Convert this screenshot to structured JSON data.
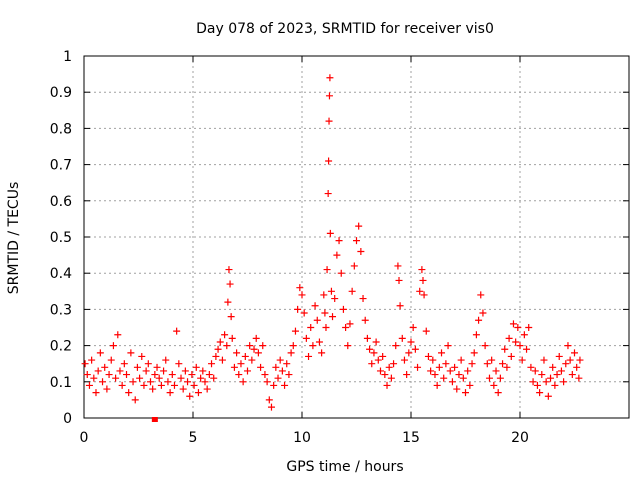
{
  "chart_data": {
    "type": "scatter",
    "title": "Day 078 of 2023, SRMTID for receiver vis0",
    "xlabel": "GPS time / hours",
    "ylabel": "SRMTID / TECUs",
    "xlim": [
      0,
      25
    ],
    "ylim": [
      0,
      1
    ],
    "xticks": [
      0,
      5,
      10,
      15,
      20
    ],
    "yticks": [
      0,
      0.1,
      0.2,
      0.3,
      0.4,
      0.5,
      0.6,
      0.7,
      0.8,
      0.9,
      1
    ],
    "xtick_labels": [
      "0",
      "5",
      "10",
      "15",
      "20"
    ],
    "ytick_labels": [
      "0",
      "0.1",
      "0.2",
      "0.3",
      "0.4",
      "0.5",
      "0.6",
      "0.7",
      "0.8",
      "0.9",
      "1"
    ],
    "grid": true,
    "marker": "+",
    "color": "#ff0000",
    "series": [
      {
        "name": "SRMTID",
        "points": [
          [
            0.05,
            0.15
          ],
          [
            0.15,
            0.12
          ],
          [
            0.25,
            0.09
          ],
          [
            0.35,
            0.16
          ],
          [
            0.45,
            0.11
          ],
          [
            0.55,
            0.07
          ],
          [
            0.65,
            0.13
          ],
          [
            0.75,
            0.18
          ],
          [
            0.85,
            0.1
          ],
          [
            0.95,
            0.14
          ],
          [
            1.05,
            0.08
          ],
          [
            1.15,
            0.12
          ],
          [
            1.25,
            0.16
          ],
          [
            1.35,
            0.2
          ],
          [
            1.45,
            0.11
          ],
          [
            1.55,
            0.23
          ],
          [
            1.65,
            0.13
          ],
          [
            1.75,
            0.09
          ],
          [
            1.85,
            0.15
          ],
          [
            1.95,
            0.12
          ],
          [
            2.05,
            0.07
          ],
          [
            2.15,
            0.18
          ],
          [
            2.25,
            0.1
          ],
          [
            2.35,
            0.05
          ],
          [
            2.45,
            0.14
          ],
          [
            2.55,
            0.11
          ],
          [
            2.65,
            0.17
          ],
          [
            2.75,
            0.09
          ],
          [
            2.85,
            0.13
          ],
          [
            2.95,
            0.15
          ],
          [
            3.05,
            0.1
          ],
          [
            3.15,
            0.08
          ],
          [
            3.25,
            0.12
          ],
          [
            3.35,
            0.14
          ],
          [
            3.45,
            0.11
          ],
          [
            3.55,
            0.09
          ],
          [
            3.65,
            0.13
          ],
          [
            3.75,
            0.16
          ],
          [
            3.85,
            0.1
          ],
          [
            3.95,
            0.07
          ],
          [
            4.05,
            0.12
          ],
          [
            4.15,
            0.09
          ],
          [
            4.25,
            0.24
          ],
          [
            4.35,
            0.15
          ],
          [
            4.45,
            0.11
          ],
          [
            4.55,
            0.08
          ],
          [
            4.65,
            0.13
          ],
          [
            4.75,
            0.1
          ],
          [
            4.85,
            0.06
          ],
          [
            4.95,
            0.12
          ],
          [
            5.05,
            0.09
          ],
          [
            5.15,
            0.14
          ],
          [
            5.25,
            0.07
          ],
          [
            5.35,
            0.11
          ],
          [
            5.45,
            0.13
          ],
          [
            5.55,
            0.1
          ],
          [
            5.65,
            0.08
          ],
          [
            5.75,
            0.12
          ],
          [
            5.85,
            0.15
          ],
          [
            5.95,
            0.11
          ],
          [
            6.05,
            0.17
          ],
          [
            6.15,
            0.19
          ],
          [
            6.25,
            0.21
          ],
          [
            6.35,
            0.16
          ],
          [
            6.45,
            0.23
          ],
          [
            6.55,
            0.2
          ],
          [
            6.6,
            0.32
          ],
          [
            6.65,
            0.41
          ],
          [
            6.7,
            0.37
          ],
          [
            6.75,
            0.28
          ],
          [
            6.8,
            0.22
          ],
          [
            6.9,
            0.14
          ],
          [
            7.0,
            0.18
          ],
          [
            7.1,
            0.12
          ],
          [
            7.2,
            0.15
          ],
          [
            7.3,
            0.1
          ],
          [
            7.4,
            0.17
          ],
          [
            7.5,
            0.13
          ],
          [
            7.6,
            0.2
          ],
          [
            7.7,
            0.16
          ],
          [
            7.8,
            0.19
          ],
          [
            7.9,
            0.22
          ],
          [
            8.0,
            0.18
          ],
          [
            8.1,
            0.14
          ],
          [
            8.2,
            0.2
          ],
          [
            8.3,
            0.12
          ],
          [
            8.4,
            0.1
          ],
          [
            8.5,
            0.05
          ],
          [
            8.6,
            0.03
          ],
          [
            8.7,
            0.09
          ],
          [
            8.8,
            0.14
          ],
          [
            8.9,
            0.11
          ],
          [
            9.0,
            0.16
          ],
          [
            9.1,
            0.13
          ],
          [
            9.2,
            0.09
          ],
          [
            9.3,
            0.15
          ],
          [
            9.4,
            0.12
          ],
          [
            9.5,
            0.18
          ],
          [
            9.6,
            0.2
          ],
          [
            9.7,
            0.24
          ],
          [
            9.8,
            0.3
          ],
          [
            9.9,
            0.36
          ],
          [
            10.0,
            0.34
          ],
          [
            10.1,
            0.29
          ],
          [
            10.2,
            0.22
          ],
          [
            10.3,
            0.17
          ],
          [
            10.4,
            0.25
          ],
          [
            10.5,
            0.2
          ],
          [
            10.6,
            0.31
          ],
          [
            10.7,
            0.27
          ],
          [
            10.8,
            0.21
          ],
          [
            10.9,
            0.18
          ],
          [
            11.0,
            0.34
          ],
          [
            11.05,
            0.29
          ],
          [
            11.1,
            0.25
          ],
          [
            11.15,
            0.41
          ],
          [
            11.2,
            0.62
          ],
          [
            11.22,
            0.71
          ],
          [
            11.24,
            0.82
          ],
          [
            11.26,
            0.89
          ],
          [
            11.28,
            0.94
          ],
          [
            11.3,
            0.51
          ],
          [
            11.35,
            0.35
          ],
          [
            11.4,
            0.28
          ],
          [
            11.5,
            0.33
          ],
          [
            11.6,
            0.45
          ],
          [
            11.7,
            0.49
          ],
          [
            11.8,
            0.4
          ],
          [
            11.9,
            0.3
          ],
          [
            12.0,
            0.25
          ],
          [
            12.1,
            0.2
          ],
          [
            12.2,
            0.26
          ],
          [
            12.3,
            0.35
          ],
          [
            12.4,
            0.42
          ],
          [
            12.5,
            0.49
          ],
          [
            12.6,
            0.53
          ],
          [
            12.7,
            0.46
          ],
          [
            12.8,
            0.33
          ],
          [
            12.9,
            0.27
          ],
          [
            13.0,
            0.22
          ],
          [
            13.1,
            0.19
          ],
          [
            13.2,
            0.15
          ],
          [
            13.3,
            0.18
          ],
          [
            13.4,
            0.21
          ],
          [
            13.5,
            0.16
          ],
          [
            13.6,
            0.13
          ],
          [
            13.7,
            0.17
          ],
          [
            13.8,
            0.12
          ],
          [
            13.9,
            0.09
          ],
          [
            14.0,
            0.14
          ],
          [
            14.1,
            0.11
          ],
          [
            14.2,
            0.15
          ],
          [
            14.3,
            0.2
          ],
          [
            14.4,
            0.42
          ],
          [
            14.45,
            0.38
          ],
          [
            14.5,
            0.31
          ],
          [
            14.6,
            0.22
          ],
          [
            14.7,
            0.16
          ],
          [
            14.8,
            0.12
          ],
          [
            14.9,
            0.18
          ],
          [
            15.0,
            0.21
          ],
          [
            15.1,
            0.25
          ],
          [
            15.2,
            0.19
          ],
          [
            15.3,
            0.14
          ],
          [
            15.4,
            0.35
          ],
          [
            15.5,
            0.41
          ],
          [
            15.55,
            0.38
          ],
          [
            15.6,
            0.34
          ],
          [
            15.7,
            0.24
          ],
          [
            15.8,
            0.17
          ],
          [
            15.9,
            0.13
          ],
          [
            16.0,
            0.16
          ],
          [
            16.1,
            0.12
          ],
          [
            16.2,
            0.09
          ],
          [
            16.3,
            0.14
          ],
          [
            16.4,
            0.18
          ],
          [
            16.5,
            0.11
          ],
          [
            16.6,
            0.15
          ],
          [
            16.7,
            0.2
          ],
          [
            16.8,
            0.13
          ],
          [
            16.9,
            0.1
          ],
          [
            17.0,
            0.14
          ],
          [
            17.1,
            0.08
          ],
          [
            17.2,
            0.12
          ],
          [
            17.3,
            0.16
          ],
          [
            17.4,
            0.11
          ],
          [
            17.5,
            0.07
          ],
          [
            17.6,
            0.13
          ],
          [
            17.7,
            0.09
          ],
          [
            17.8,
            0.15
          ],
          [
            17.9,
            0.18
          ],
          [
            18.0,
            0.23
          ],
          [
            18.1,
            0.27
          ],
          [
            18.2,
            0.34
          ],
          [
            18.3,
            0.29
          ],
          [
            18.4,
            0.2
          ],
          [
            18.5,
            0.15
          ],
          [
            18.6,
            0.11
          ],
          [
            18.7,
            0.16
          ],
          [
            18.8,
            0.09
          ],
          [
            18.9,
            0.13
          ],
          [
            19.0,
            0.07
          ],
          [
            19.1,
            0.11
          ],
          [
            19.2,
            0.15
          ],
          [
            19.3,
            0.19
          ],
          [
            19.4,
            0.14
          ],
          [
            19.5,
            0.22
          ],
          [
            19.6,
            0.17
          ],
          [
            19.7,
            0.26
          ],
          [
            19.8,
            0.21
          ],
          [
            19.9,
            0.25
          ],
          [
            20.0,
            0.2
          ],
          [
            20.1,
            0.16
          ],
          [
            20.2,
            0.23
          ],
          [
            20.3,
            0.19
          ],
          [
            20.4,
            0.25
          ],
          [
            20.5,
            0.14
          ],
          [
            20.6,
            0.1
          ],
          [
            20.7,
            0.13
          ],
          [
            20.8,
            0.09
          ],
          [
            20.9,
            0.07
          ],
          [
            21.0,
            0.12
          ],
          [
            21.1,
            0.16
          ],
          [
            21.2,
            0.1
          ],
          [
            21.3,
            0.06
          ],
          [
            21.4,
            0.11
          ],
          [
            21.5,
            0.14
          ],
          [
            21.6,
            0.09
          ],
          [
            21.7,
            0.12
          ],
          [
            21.8,
            0.17
          ],
          [
            21.9,
            0.13
          ],
          [
            22.0,
            0.1
          ],
          [
            22.1,
            0.15
          ],
          [
            22.2,
            0.2
          ],
          [
            22.3,
            0.16
          ],
          [
            22.4,
            0.12
          ],
          [
            22.5,
            0.18
          ],
          [
            22.6,
            0.14
          ],
          [
            22.7,
            0.11
          ],
          [
            22.75,
            0.16
          ]
        ]
      }
    ],
    "outlier_marker": {
      "x": 3.25,
      "y": 0.0,
      "shape": "square"
    }
  }
}
